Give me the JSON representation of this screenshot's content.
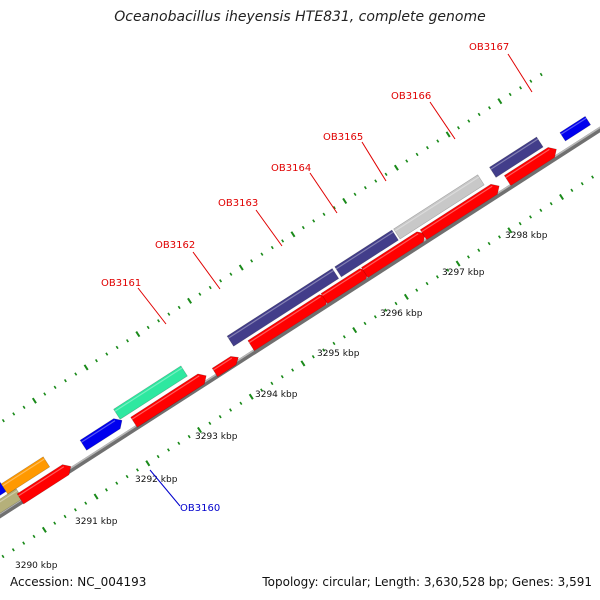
{
  "title": "Oceanobacillus iheyensis HTE831, complete genome",
  "footer": {
    "accession": "Accession: NC_004193",
    "stats": "Topology: circular; Length: 3,630,528 bp; Genes: 3,591"
  },
  "colors": {
    "background": "#ffffff",
    "backbone": "#8c8c8c",
    "tick_green": "#1a8a1a",
    "label_red": "#e00000",
    "label_blue": "#0000cc",
    "feature_red": "#ff0000",
    "feature_navy": "#423d8a",
    "feature_gray": "#c8c8c8",
    "feature_seafoam": "#2ee8a0",
    "feature_orange": "#ff9900",
    "feature_blue": "#0000ee",
    "feature_khaki": "#b5b07a"
  },
  "kbp_labels": [
    "3290 kbp",
    "3291 kbp",
    "3292 kbp",
    "3293 kbp",
    "3294 kbp",
    "3295 kbp",
    "3296 kbp",
    "3297 kbp",
    "3298 kbp"
  ],
  "gene_labels": [
    {
      "text": "OB3160",
      "color": "#0000cc"
    },
    {
      "text": "OB3161",
      "color": "#e00000"
    },
    {
      "text": "OB3162",
      "color": "#e00000"
    },
    {
      "text": "OB3163",
      "color": "#e00000"
    },
    {
      "text": "OB3164",
      "color": "#e00000"
    },
    {
      "text": "OB3165",
      "color": "#e00000"
    },
    {
      "text": "OB3166",
      "color": "#e00000"
    },
    {
      "text": "OB3167",
      "color": "#e00000"
    }
  ]
}
